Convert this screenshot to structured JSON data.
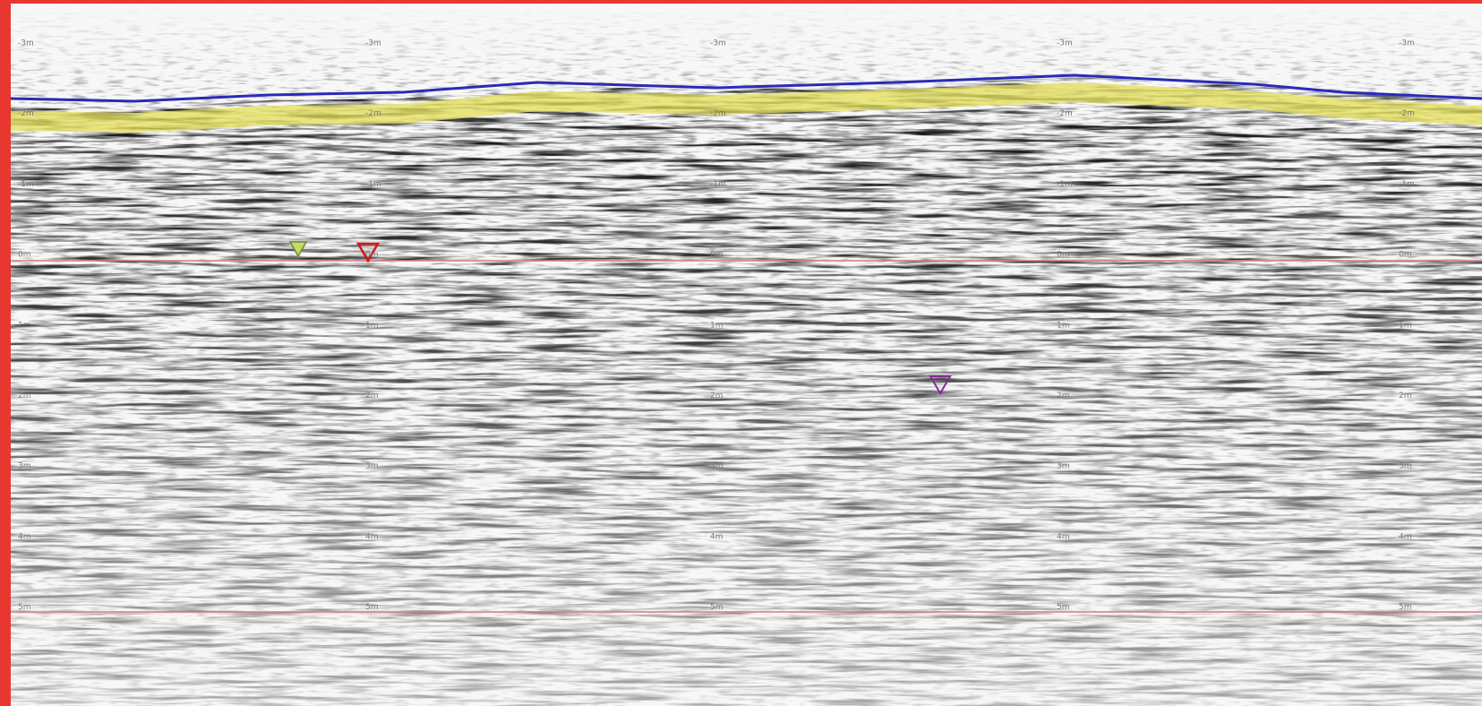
{
  "depth_labels": [
    "-3m",
    "-2m",
    "-1m",
    "0m",
    "1m",
    "2m",
    "3m",
    "4m",
    "5m"
  ]
}
